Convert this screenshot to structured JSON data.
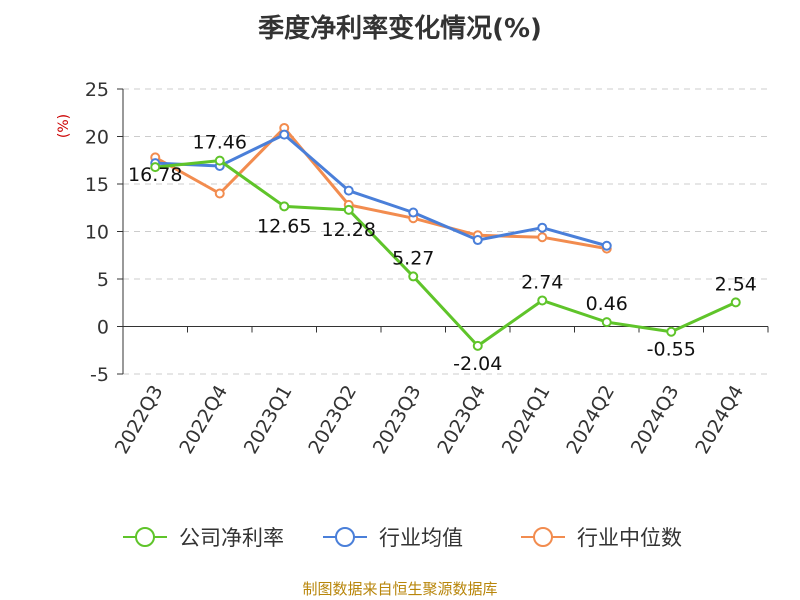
{
  "chart_data": {
    "type": "line",
    "title": "季度净利率变化情况(%)",
    "ylabel": "(%)",
    "categories": [
      "2022Q3",
      "2022Q4",
      "2023Q1",
      "2023Q2",
      "2023Q3",
      "2023Q4",
      "2024Q1",
      "2024Q2",
      "2024Q3",
      "2024Q4"
    ],
    "ylim": [
      -5,
      25
    ],
    "yticks": [
      -5,
      0,
      5,
      10,
      15,
      20,
      25
    ],
    "grid": true,
    "legend_position": "bottom",
    "series": [
      {
        "name": "公司净利率",
        "color": "#5fc42a",
        "values": [
          16.78,
          17.46,
          12.65,
          12.28,
          5.27,
          -2.04,
          2.74,
          0.46,
          -0.55,
          2.54
        ],
        "labels": [
          "16.78",
          "17.46",
          "12.65",
          "12.28",
          "5.27",
          "-2.04",
          "2.74",
          "0.46",
          "-0.55",
          "2.54"
        ]
      },
      {
        "name": "行业均值",
        "color": "#4a7fd9",
        "values": [
          17.2,
          16.9,
          20.2,
          14.3,
          12.0,
          9.1,
          10.4,
          8.5,
          null,
          null
        ]
      },
      {
        "name": "行业中位数",
        "color": "#f28c4f",
        "values": [
          17.8,
          14.0,
          20.9,
          12.8,
          11.4,
          9.6,
          9.4,
          8.2,
          null,
          null
        ]
      }
    ]
  },
  "source": "制图数据来自恒生聚源数据库"
}
